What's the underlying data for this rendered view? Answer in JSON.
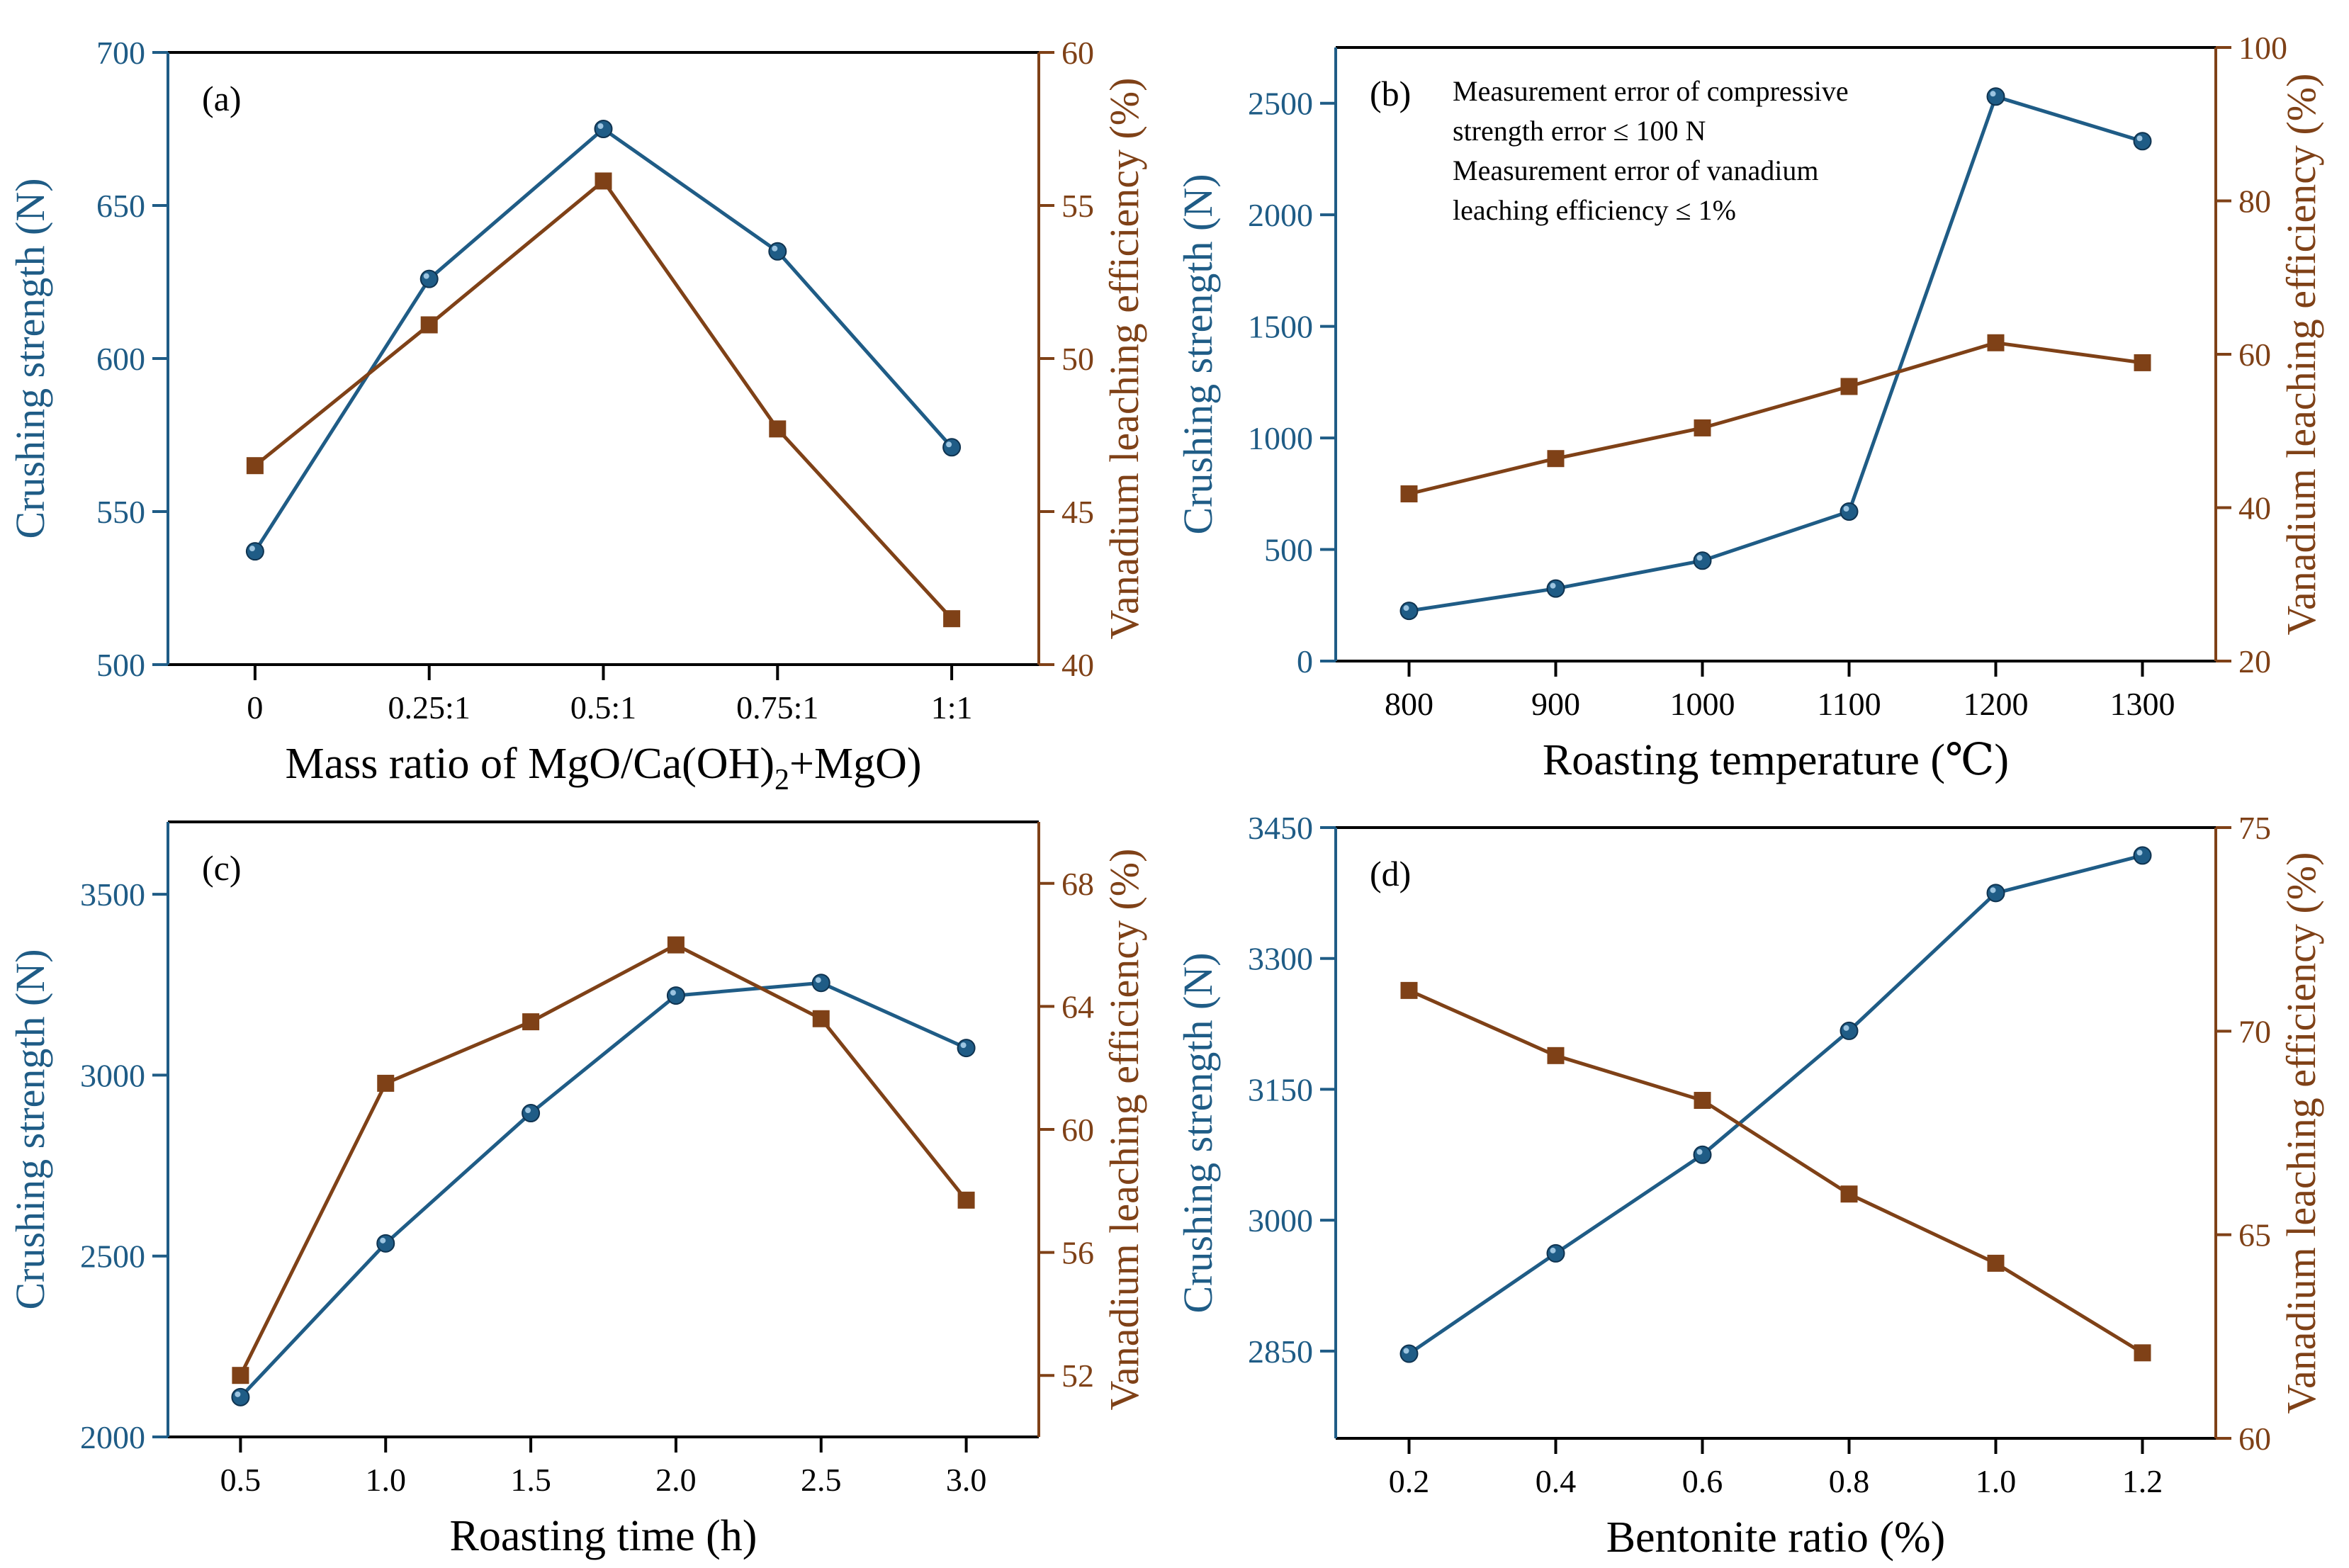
{
  "colors": {
    "strength": "#1F5C86",
    "leaching": "#7F4117",
    "axis": "#000000"
  },
  "chart_data": [
    {
      "type": "line",
      "panel_label": "(a)",
      "xlabel": "Mass ratio of MgO/Ca(OH)",
      "xlabel_sub": "2",
      "xlabel_tail": "+MgO)",
      "ylabel_left": "Crushing strength (N)",
      "ylabel_right": "Vanadium leaching efficiency (%)",
      "x_categorical": true,
      "categories": [
        "0",
        "0.25:1",
        "0.5:1",
        "0.75:1",
        "1:1"
      ],
      "xlim": [
        -0.5,
        4.5
      ],
      "ylim_left": [
        500,
        700
      ],
      "yticks_left": [
        "500",
        "550",
        "600",
        "650",
        "700"
      ],
      "ylim_right": [
        40,
        60
      ],
      "yticks_right": [
        "40",
        "45",
        "50",
        "55",
        "60"
      ],
      "annotation": [],
      "series": [
        {
          "axis": "left",
          "marker": "circle",
          "values": [
            537,
            626,
            675,
            635,
            571
          ]
        },
        {
          "axis": "right",
          "marker": "square",
          "values": [
            46.5,
            51.1,
            55.8,
            47.7,
            41.5
          ]
        }
      ]
    },
    {
      "type": "line",
      "panel_label": "(b)",
      "xlabel": "Roasting temperature (℃)",
      "ylabel_left": "Crushing strength (N)",
      "ylabel_right": "Vanadium leaching efficiency (%)",
      "x_categorical": false,
      "x": [
        800,
        900,
        1000,
        1100,
        1200,
        1300
      ],
      "xticks": [
        "800",
        "900",
        "1000",
        "1100",
        "1200",
        "1300"
      ],
      "xlim": [
        750,
        1350
      ],
      "ylim_left": [
        0,
        2750
      ],
      "yticks_left": [
        "0",
        "500",
        "1000",
        "1500",
        "2000",
        "2500"
      ],
      "ylim_right": [
        20,
        100
      ],
      "yticks_right": [
        "20",
        "40",
        "60",
        "80",
        "100"
      ],
      "annotation": [
        "Measurement error of compressive",
        "strength error ≤ 100 N",
        "Measurement error of vanadium",
        "leaching efficiency ≤ 1%"
      ],
      "series": [
        {
          "axis": "left",
          "marker": "circle",
          "values": [
            225,
            325,
            450,
            670,
            2530,
            2330
          ]
        },
        {
          "axis": "right",
          "marker": "square",
          "values": [
            41.8,
            46.4,
            50.4,
            55.8,
            61.5,
            58.9
          ]
        }
      ]
    },
    {
      "type": "line",
      "panel_label": "(c)",
      "xlabel": "Roasting time (h)",
      "ylabel_left": "Crushing strength (N)",
      "ylabel_right": "Vanadium leaching efficiency (%)",
      "x_categorical": false,
      "x": [
        0.5,
        1.0,
        1.5,
        2.0,
        2.5,
        3.0
      ],
      "xticks": [
        "0.5",
        "1.0",
        "1.5",
        "2.0",
        "2.5",
        "3.0"
      ],
      "xlim": [
        0.25,
        3.25
      ],
      "ylim_left": [
        2000,
        3700
      ],
      "yticks_left": [
        "2000",
        "2500",
        "3000",
        "3500"
      ],
      "ylim_right": [
        50,
        70
      ],
      "yticks_right": [
        "52",
        "56",
        "60",
        "64",
        "68"
      ],
      "annotation": [],
      "series": [
        {
          "axis": "left",
          "marker": "circle",
          "values": [
            2110,
            2535,
            2895,
            3220,
            3255,
            3075
          ]
        },
        {
          "axis": "right",
          "marker": "square",
          "values": [
            52.0,
            61.5,
            63.5,
            66.0,
            63.6,
            57.7
          ]
        }
      ]
    },
    {
      "type": "line",
      "panel_label": "(d)",
      "xlabel": "Bentonite ratio (%)",
      "ylabel_left": "Crushing strength (N)",
      "ylabel_right": "Vanadium leaching efficiency (%)",
      "x_categorical": false,
      "x": [
        0.2,
        0.4,
        0.6,
        0.8,
        1.0,
        1.2
      ],
      "xticks": [
        "0.2",
        "0.4",
        "0.6",
        "0.8",
        "1.0",
        "1.2"
      ],
      "xlim": [
        0.1,
        1.3
      ],
      "ylim_left": [
        2750,
        3450
      ],
      "yticks_left": [
        "2850",
        "3000",
        "3150",
        "3300",
        "3450"
      ],
      "ylim_right": [
        60,
        75
      ],
      "yticks_right": [
        "60",
        "65",
        "70",
        "75"
      ],
      "annotation": [],
      "series": [
        {
          "axis": "left",
          "marker": "circle",
          "values": [
            2847,
            2962,
            3075,
            3217,
            3375,
            3418
          ]
        },
        {
          "axis": "right",
          "marker": "square",
          "values": [
            71.0,
            69.4,
            68.3,
            66.0,
            64.3,
            62.1
          ]
        }
      ]
    }
  ]
}
